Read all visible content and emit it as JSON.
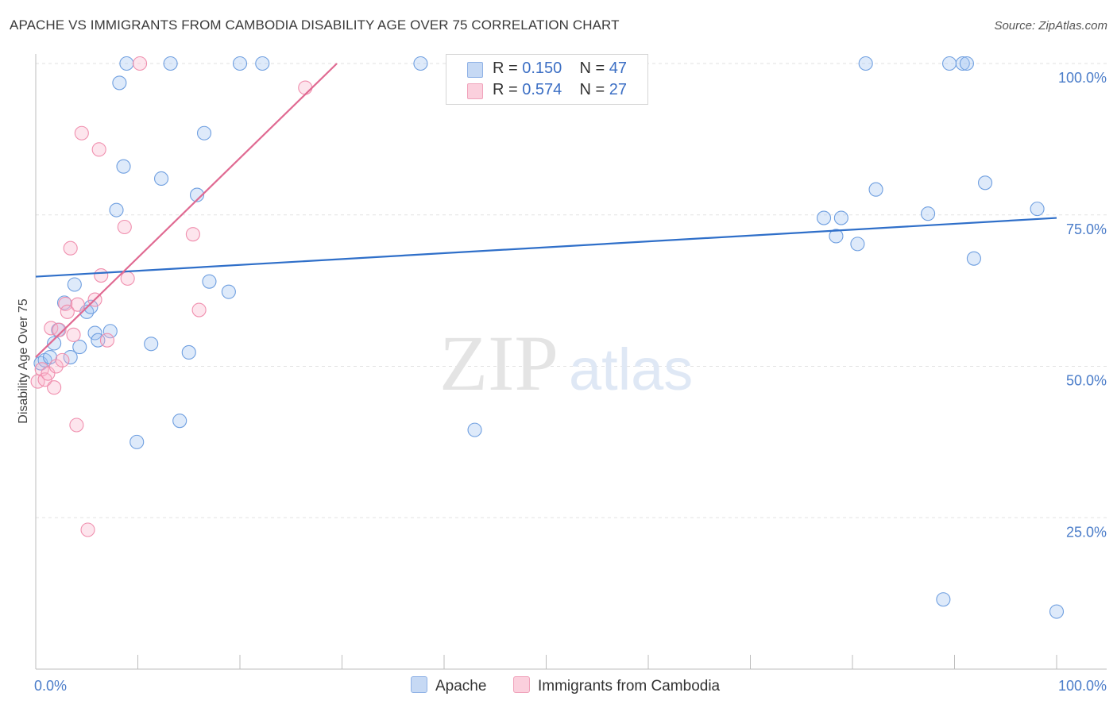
{
  "title": "APACHE VS IMMIGRANTS FROM CAMBODIA DISABILITY AGE OVER 75 CORRELATION CHART",
  "source": "Source: ZipAtlas.com",
  "legend": {
    "rows": [
      {
        "r_label": "R = ",
        "r_value": "0.150",
        "n_label": "N = ",
        "n_value": "47"
      },
      {
        "r_label": "R = ",
        "r_value": "0.574",
        "n_label": "N = ",
        "n_value": "27"
      }
    ]
  },
  "chart_data": {
    "type": "scatter",
    "title": "APACHE VS IMMIGRANTS FROM CAMBODIA DISABILITY AGE OVER 75 CORRELATION CHART",
    "xlabel": "",
    "ylabel": "Disability Age Over 75",
    "xlim": [
      0,
      100
    ],
    "ylim": [
      0,
      105
    ],
    "x_tick_labels": [
      "0.0%",
      "100.0%"
    ],
    "y_ticks": [
      25,
      50,
      75,
      100
    ],
    "y_tick_labels": [
      "25.0%",
      "50.0%",
      "75.0%",
      "100.0%"
    ],
    "grid": true,
    "legend_placement": "top-center",
    "colors": {
      "apache": "#6f9fe0",
      "apache_line": "#2f6fc9",
      "cambodia": "#f08fae",
      "cambodia_line": "#e06a92"
    },
    "series": [
      {
        "name": "Apache",
        "color": "#6f9fe0",
        "trend": {
          "x": [
            0,
            100
          ],
          "y": [
            64.8,
            74.5
          ]
        },
        "points": [
          [
            0.5,
            50.5
          ],
          [
            0.9,
            51.0
          ],
          [
            1.4,
            51.5
          ],
          [
            1.8,
            53.8
          ],
          [
            2.2,
            56.0
          ],
          [
            2.8,
            60.5
          ],
          [
            3.4,
            51.5
          ],
          [
            3.8,
            63.5
          ],
          [
            4.3,
            53.2
          ],
          [
            5.0,
            59.0
          ],
          [
            5.4,
            59.8
          ],
          [
            5.8,
            55.5
          ],
          [
            6.1,
            54.3
          ],
          [
            7.3,
            55.8
          ],
          [
            7.9,
            75.8
          ],
          [
            8.2,
            96.8
          ],
          [
            8.6,
            83.0
          ],
          [
            8.9,
            100.0
          ],
          [
            9.9,
            37.5
          ],
          [
            11.3,
            53.7
          ],
          [
            12.3,
            81.0
          ],
          [
            14.1,
            41.0
          ],
          [
            15.0,
            52.3
          ],
          [
            15.8,
            78.3
          ],
          [
            16.5,
            88.5
          ],
          [
            17.0,
            64.0
          ],
          [
            18.9,
            62.3
          ],
          [
            13.2,
            100.0
          ],
          [
            20.0,
            100.0
          ],
          [
            22.2,
            100.0
          ],
          [
            37.7,
            100.0
          ],
          [
            43.0,
            39.5
          ],
          [
            77.2,
            74.5
          ],
          [
            78.4,
            71.5
          ],
          [
            78.9,
            74.5
          ],
          [
            80.5,
            70.2
          ],
          [
            81.3,
            100.0
          ],
          [
            82.3,
            79.2
          ],
          [
            87.4,
            75.2
          ],
          [
            88.9,
            11.5
          ],
          [
            89.5,
            100.0
          ],
          [
            90.8,
            100.0
          ],
          [
            91.2,
            100.0
          ],
          [
            91.9,
            67.8
          ],
          [
            93.0,
            80.3
          ],
          [
            98.1,
            76.0
          ],
          [
            100.0,
            9.5
          ]
        ]
      },
      {
        "name": "Immigrants from Cambodia",
        "color": "#f08fae",
        "trend": {
          "x": [
            0,
            29.5
          ],
          "y": [
            51.5,
            100.0
          ]
        },
        "points": [
          [
            0.2,
            47.5
          ],
          [
            0.6,
            49.5
          ],
          [
            0.9,
            47.8
          ],
          [
            1.2,
            48.8
          ],
          [
            1.5,
            56.3
          ],
          [
            1.8,
            46.5
          ],
          [
            2.0,
            50.0
          ],
          [
            2.3,
            56.0
          ],
          [
            2.6,
            51.0
          ],
          [
            2.9,
            60.3
          ],
          [
            3.1,
            59.0
          ],
          [
            3.4,
            69.5
          ],
          [
            3.7,
            55.2
          ],
          [
            4.0,
            40.3
          ],
          [
            4.1,
            60.2
          ],
          [
            4.5,
            88.5
          ],
          [
            5.1,
            23.0
          ],
          [
            5.8,
            61.0
          ],
          [
            6.2,
            85.8
          ],
          [
            6.4,
            65.0
          ],
          [
            7.0,
            54.3
          ],
          [
            8.7,
            73.0
          ],
          [
            9.0,
            64.5
          ],
          [
            10.2,
            100.0
          ],
          [
            16.0,
            59.3
          ],
          [
            15.4,
            71.8
          ],
          [
            26.4,
            96.0
          ]
        ]
      }
    ]
  },
  "bottom_legend": [
    {
      "label": "Apache"
    },
    {
      "label": "Immigrants from Cambodia"
    }
  ],
  "watermark": {
    "part1": "ZIP",
    "part2": "atlas"
  }
}
